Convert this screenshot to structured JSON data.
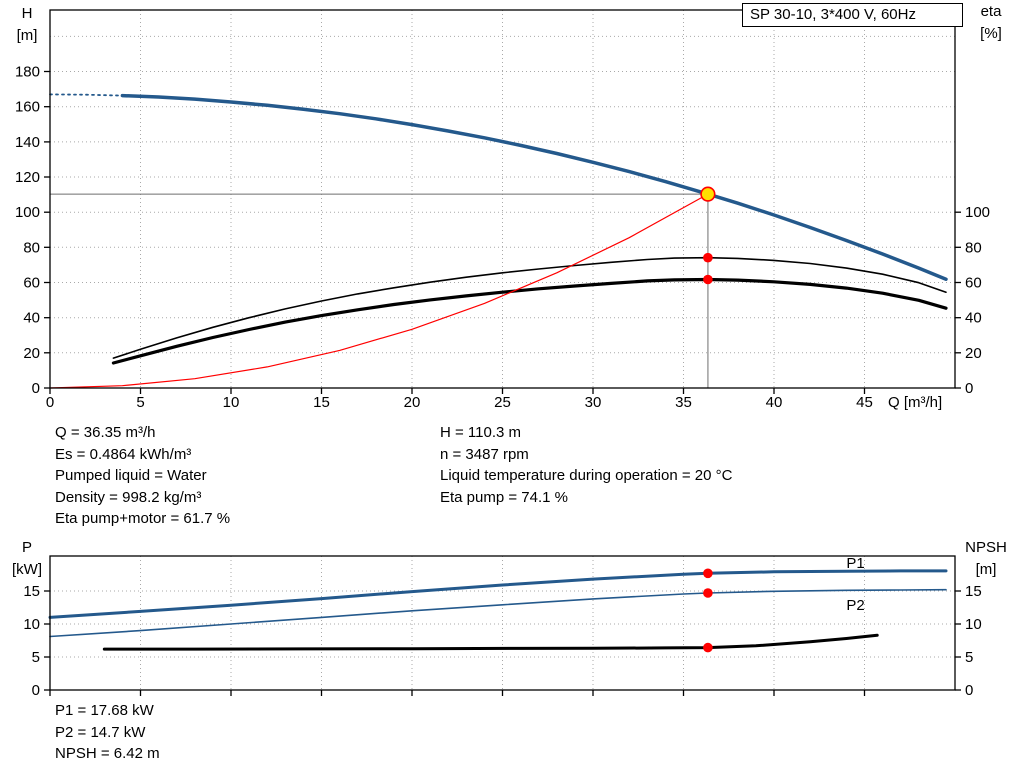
{
  "colors": {
    "blue": "#24598c",
    "black": "#000000",
    "red": "#ff0000",
    "yellow": "#ffdf00",
    "grid": "#a9a9a9",
    "crosshair": "#6e6e6e",
    "axis": "#000000"
  },
  "chart_data": [
    {
      "type": "line",
      "title": "SP 30-10, 3*400 V, 60Hz",
      "xlabel": "Q [m³/h]",
      "ylabel_left_lines": [
        "H",
        "[m]"
      ],
      "ylabel_right_lines": [
        "eta",
        "[%]"
      ],
      "xlim": [
        0,
        50
      ],
      "ylim_left": [
        0,
        215
      ],
      "x_ticks": [
        0,
        5,
        10,
        15,
        20,
        25,
        30,
        35,
        40,
        45
      ],
      "y_ticks_left": [
        0,
        20,
        40,
        60,
        80,
        100,
        120,
        140,
        160,
        180
      ],
      "y_grid": [
        20,
        40,
        60,
        80,
        100,
        120,
        140,
        160,
        180,
        200
      ],
      "y_ticks_right": [
        0,
        20,
        40,
        60,
        80,
        100
      ],
      "grid": true,
      "legend": "none",
      "series": [
        {
          "name": "head-lead-dashed",
          "color": "blue",
          "width": 1.8,
          "dash": "2 4",
          "x": [
            0,
            2,
            4
          ],
          "y": [
            167,
            166.8,
            166.3
          ]
        },
        {
          "name": "head",
          "color": "blue",
          "width": 3.5,
          "x": [
            4,
            6,
            8,
            10,
            12,
            14,
            16,
            18,
            20,
            22,
            24,
            26,
            28,
            30,
            32,
            34,
            36.35,
            38,
            40,
            42,
            44,
            46,
            48,
            49.5
          ],
          "y": [
            166.3,
            165.5,
            164.3,
            162.7,
            160.8,
            158.6,
            156.0,
            153.1,
            149.8,
            146.2,
            142.3,
            138.0,
            133.4,
            128.4,
            123.1,
            117.4,
            110.3,
            105.1,
            98.4,
            91.3,
            83.9,
            76.2,
            68.2,
            61.9
          ]
        },
        {
          "name": "eta-pump",
          "color": "black",
          "width": 1.6,
          "x": [
            3.5,
            5,
            7,
            9,
            11,
            13,
            15,
            17,
            19,
            21,
            23,
            25,
            27,
            29,
            31,
            33,
            34.5,
            36.35,
            38,
            40,
            42,
            44,
            46,
            48,
            49.5
          ],
          "y": [
            17,
            22,
            28.5,
            34.5,
            40,
            45,
            49.5,
            53.5,
            57,
            60.2,
            63,
            65.5,
            67.7,
            69.7,
            71.5,
            73.1,
            73.9,
            74.1,
            73.7,
            72.6,
            70.8,
            68.2,
            64.7,
            59.9,
            54.5
          ]
        },
        {
          "name": "eta-pump-motor",
          "color": "black",
          "width": 3.2,
          "x": [
            3.5,
            5,
            7,
            9,
            11,
            13,
            15,
            17,
            19,
            21,
            23,
            25,
            27,
            29,
            31,
            33,
            34.5,
            36.35,
            38,
            40,
            42,
            44,
            46,
            48,
            49.5
          ],
          "y": [
            14.2,
            18.3,
            23.7,
            28.7,
            33.3,
            37.5,
            41.2,
            44.5,
            47.5,
            50.1,
            52.4,
            54.5,
            56.4,
            58,
            59.5,
            60.9,
            61.5,
            61.7,
            61.4,
            60.4,
            58.9,
            56.8,
            53.9,
            49.9,
            45.4
          ]
        },
        {
          "name": "system-curve",
          "color": "red",
          "width": 1.2,
          "x": [
            0,
            4,
            8,
            12,
            16,
            20,
            24,
            28,
            32,
            36.35
          ],
          "y": [
            0,
            1.3,
            5.3,
            12.0,
            21.4,
            33.4,
            48.1,
            65.5,
            85.5,
            110.3
          ]
        }
      ],
      "duty": {
        "q": 36.35,
        "h": 110.3,
        "eta_points": [
          74.1,
          61.7
        ]
      }
    },
    {
      "type": "line",
      "title": "",
      "xlabel": "",
      "ylabel_left_lines": [
        "P",
        "[kW]"
      ],
      "ylabel_right_lines": [
        "NPSH",
        "[m]"
      ],
      "xlim": [
        0,
        50
      ],
      "ylim_left": [
        0,
        20.3
      ],
      "x_ticks": [
        0,
        5,
        10,
        15,
        20,
        25,
        30,
        35,
        40,
        45
      ],
      "y_ticks_left": [
        0,
        5,
        10,
        15
      ],
      "y_grid": [
        5,
        10,
        15
      ],
      "y_ticks_right": [
        0,
        5,
        10,
        15
      ],
      "grid": true,
      "legend": "inline",
      "series": [
        {
          "name": "p1",
          "color": "blue",
          "width": 3,
          "x": [
            0,
            5,
            10,
            15,
            20,
            25,
            30,
            35,
            36.35,
            40,
            44,
            47,
            49.5
          ],
          "y": [
            11.0,
            11.9,
            12.85,
            13.85,
            14.9,
            15.9,
            16.8,
            17.55,
            17.68,
            17.9,
            18.0,
            18.05,
            18.05
          ]
        },
        {
          "name": "p2",
          "color": "blue",
          "width": 1.6,
          "x": [
            0,
            5,
            10,
            15,
            20,
            25,
            30,
            35,
            36.35,
            40,
            44,
            47,
            49.5
          ],
          "y": [
            8.1,
            9.0,
            10.0,
            11.0,
            12.0,
            12.9,
            13.8,
            14.55,
            14.7,
            14.95,
            15.1,
            15.15,
            15.2
          ]
        },
        {
          "name": "npsh",
          "color": "black",
          "width": 3,
          "x": [
            3,
            8,
            14,
            20,
            26,
            30,
            34,
            36.35,
            39,
            42,
            44,
            45.7
          ],
          "y": [
            6.2,
            6.2,
            6.22,
            6.25,
            6.3,
            6.32,
            6.38,
            6.42,
            6.7,
            7.3,
            7.8,
            8.3
          ]
        }
      ],
      "duty_markers": [
        {
          "q": 36.35,
          "v": 17.68
        },
        {
          "q": 36.35,
          "v": 14.7
        },
        {
          "q": 36.35,
          "v": 6.42
        }
      ],
      "curve_labels": [
        {
          "text": "P1",
          "q": 44,
          "v": 18.5
        },
        {
          "text": "P2",
          "q": 44,
          "v": 12.1
        }
      ]
    }
  ],
  "info_top": {
    "left": [
      "Q = 36.35 m³/h",
      "Es = 0.4864 kWh/m³",
      "Pumped liquid = Water",
      "Density = 998.2 kg/m³",
      "Eta pump+motor = 61.7 %"
    ],
    "right": [
      "H = 110.3 m",
      "n = 3487 rpm",
      "Liquid temperature during operation = 20 °C",
      "Eta pump = 74.1 %"
    ]
  },
  "info_bottom": {
    "lines": [
      "P1 = 17.68 kW",
      "P2 = 14.7 kW",
      "NPSH = 6.42 m"
    ]
  }
}
